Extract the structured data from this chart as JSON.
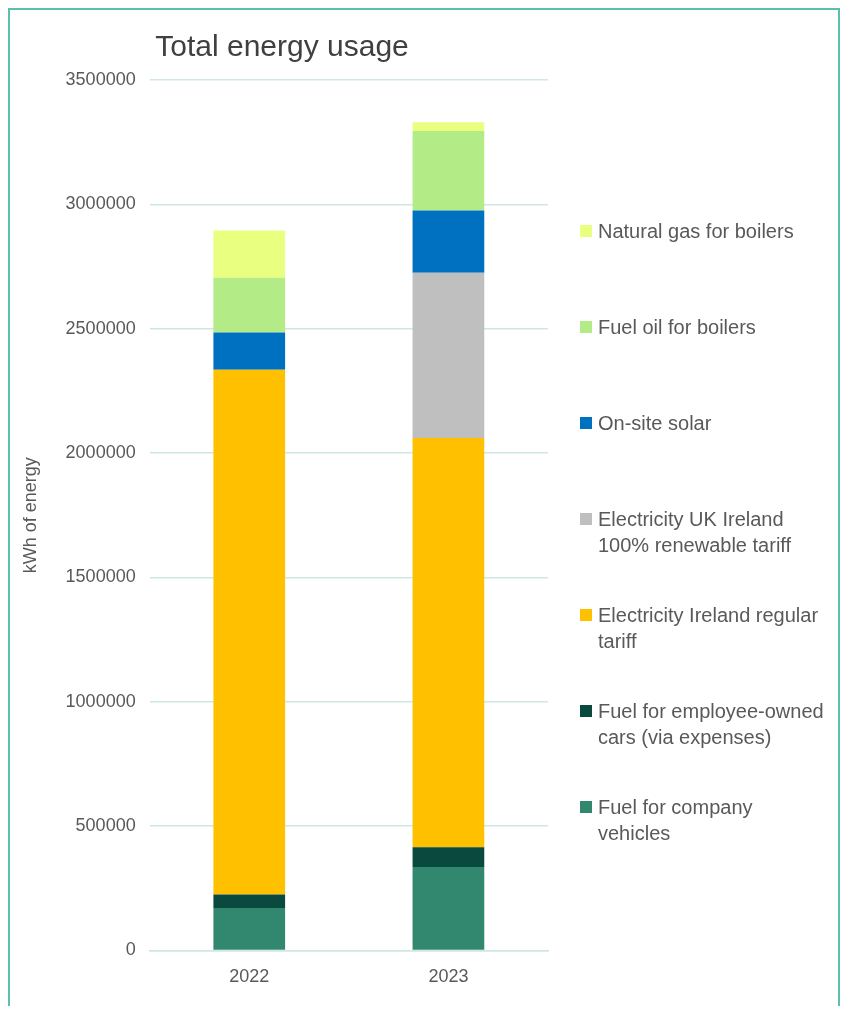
{
  "chart_data": {
    "type": "bar",
    "title": "Total energy usage",
    "ylabel": "kWh of energy",
    "categories": [
      "2022",
      "2023"
    ],
    "stacked": true,
    "ylim": [
      0,
      3500000
    ],
    "yticks": [
      0,
      500000,
      1000000,
      1500000,
      2000000,
      2500000,
      3000000,
      3500000
    ],
    "grid": "y",
    "legend": "right",
    "series": [
      {
        "name": "Fuel for company vehicles",
        "color": "#32876f",
        "values": [
          170000,
          335000
        ]
      },
      {
        "name": "Fuel for employee-owned cars (via expenses)",
        "color": "#0a4a3e",
        "values": [
          55000,
          80000
        ]
      },
      {
        "name": "Electricity Ireland regular tariff",
        "color": "#ffc000",
        "values": [
          2110000,
          1645000
        ]
      },
      {
        "name": "Electricity UK Ireland 100% renewable tariff",
        "color": "#bfbfbf",
        "values": [
          0,
          665000
        ]
      },
      {
        "name": "On-site solar",
        "color": "#0070c0",
        "values": [
          150000,
          250000
        ]
      },
      {
        "name": "Fuel oil for boilers",
        "color": "#b3eb87",
        "values": [
          220000,
          320000
        ]
      },
      {
        "name": "Natural gas for boilers",
        "color": "#e8ff80",
        "values": [
          190000,
          35000
        ]
      }
    ]
  }
}
